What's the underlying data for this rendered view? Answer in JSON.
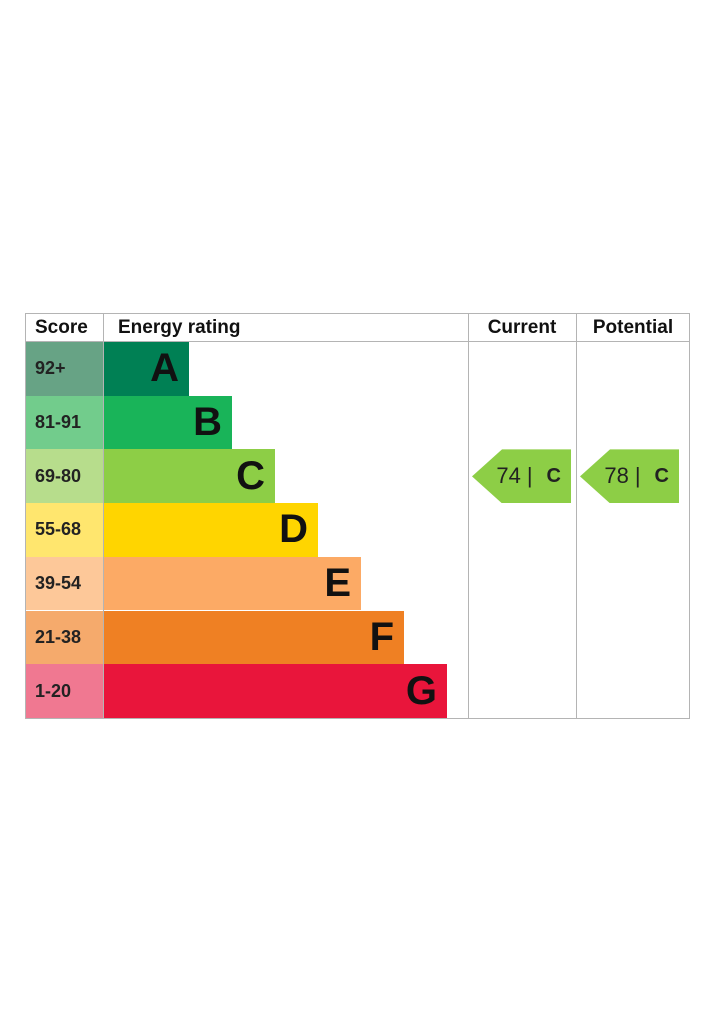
{
  "header": {
    "score": "Score",
    "energy_rating": "Energy rating",
    "current": "Current",
    "potential": "Potential"
  },
  "bands": [
    {
      "score": "92+",
      "letter": "A",
      "color": "#008054",
      "score_bg": "#67a385"
    },
    {
      "score": "81-91",
      "letter": "B",
      "color": "#19b459",
      "score_bg": "#72cc8c"
    },
    {
      "score": "69-80",
      "letter": "C",
      "color": "#8dce46",
      "score_bg": "#b7dd8c"
    },
    {
      "score": "55-68",
      "letter": "D",
      "color": "#ffd500",
      "score_bg": "#ffe66e"
    },
    {
      "score": "39-54",
      "letter": "E",
      "color": "#fcaa65",
      "score_bg": "#fdc899"
    },
    {
      "score": "21-38",
      "letter": "F",
      "color": "#ef8023",
      "score_bg": "#f5aa6c"
    },
    {
      "score": "1-20",
      "letter": "G",
      "color": "#e9153b",
      "score_bg": "#f07891"
    }
  ],
  "current": {
    "value": "74",
    "separator": "|",
    "letter": "C",
    "color": "#8dce46"
  },
  "potential": {
    "value": "78",
    "separator": "|",
    "letter": "C",
    "color": "#8dce46"
  },
  "chart_data": {
    "type": "bar",
    "categories": [
      "92+",
      "81-91",
      "69-80",
      "55-68",
      "39-54",
      "21-38",
      "1-20"
    ],
    "series": [
      {
        "values": [
          "A",
          "B",
          "C",
          "D",
          "E",
          "F",
          "G"
        ]
      }
    ],
    "current_rating": {
      "score": 74,
      "band": "C"
    },
    "potential_rating": {
      "score": 78,
      "band": "C"
    }
  }
}
